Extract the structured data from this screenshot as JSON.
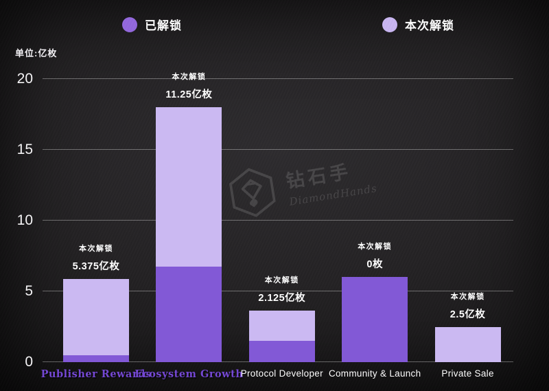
{
  "unit_label": "单位:亿枚",
  "legend": [
    {
      "label": "已解锁",
      "color": "#9368dd"
    },
    {
      "label": "本次解锁",
      "color": "#c9b6f2"
    }
  ],
  "watermark": {
    "cn": "钻石手",
    "en": "DiamondHands"
  },
  "chart_data": {
    "type": "bar",
    "stacked": true,
    "title": "",
    "xlabel": "",
    "ylabel": "单位:亿枚",
    "ylim": [
      0,
      20
    ],
    "yticks": [
      0,
      5,
      10,
      15,
      20
    ],
    "grid": true,
    "legend_position": "top",
    "categories": [
      "Publisher Rewards",
      "Ecosystem Growth",
      "Protocol Developer",
      "Community & Launch",
      "Private Sale"
    ],
    "series": [
      {
        "name": "已解锁",
        "color": "#8259d6",
        "values": [
          0.5,
          6.75,
          1.5,
          6,
          0
        ]
      },
      {
        "name": "本次解锁",
        "color": "#cbb9f2",
        "values": [
          5.375,
          11.25,
          2.125,
          0,
          2.5
        ]
      }
    ],
    "annotations": [
      {
        "title": "本次解锁",
        "value": "5.375亿枚"
      },
      {
        "title": "本次解锁",
        "value": "11.25亿枚"
      },
      {
        "title": "本次解锁",
        "value": "2.125亿枚"
      },
      {
        "title": "本次解锁",
        "value": "0枚"
      },
      {
        "title": "本次解锁",
        "value": "2.5亿枚"
      }
    ],
    "category_colors": [
      "#7447d4",
      "#7447d4",
      "#ffffff",
      "#ffffff",
      "#ffffff"
    ],
    "category_label_styles": [
      "fancy",
      "fancy",
      "plain",
      "plain",
      "plain"
    ]
  }
}
